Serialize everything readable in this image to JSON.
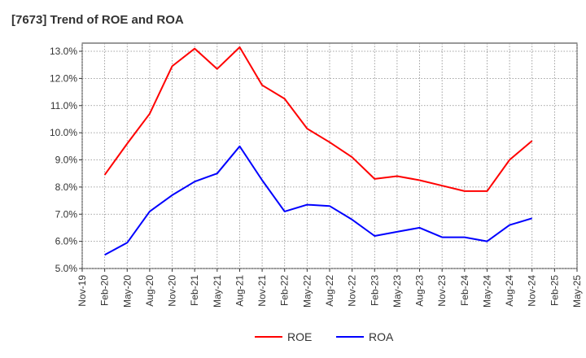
{
  "chart_data": {
    "type": "line",
    "title": "[7673]  Trend of ROE and ROA",
    "x_labels": [
      "Nov-19",
      "Feb-20",
      "May-20",
      "Aug-20",
      "Nov-20",
      "Feb-21",
      "May-21",
      "Aug-21",
      "Nov-21",
      "Feb-22",
      "May-22",
      "Aug-22",
      "Nov-22",
      "Feb-23",
      "May-23",
      "Aug-23",
      "Nov-23",
      "Feb-24",
      "May-24",
      "Aug-24",
      "Nov-24",
      "Feb-25",
      "May-25"
    ],
    "y_ticks": [
      "5.0%",
      "6.0%",
      "7.0%",
      "8.0%",
      "9.0%",
      "10.0%",
      "11.0%",
      "12.0%",
      "13.0%"
    ],
    "ylim": [
      5.0,
      13.3
    ],
    "grid": true,
    "legend_position": "bottom",
    "series": [
      {
        "name": "ROE",
        "color": "#ff0000",
        "x": [
          "Feb-20",
          "May-20",
          "Aug-20",
          "Nov-20",
          "Feb-21",
          "May-21",
          "Aug-21",
          "Nov-21",
          "Feb-22",
          "May-22",
          "Aug-22",
          "Nov-22",
          "Feb-23",
          "May-23",
          "Aug-23",
          "Nov-23",
          "Feb-24",
          "May-24",
          "Aug-24",
          "Nov-24"
        ],
        "values": [
          8.45,
          9.6,
          10.7,
          12.45,
          13.1,
          12.35,
          13.15,
          11.75,
          11.25,
          10.15,
          9.65,
          9.1,
          8.3,
          8.4,
          8.25,
          8.05,
          7.85,
          7.85,
          9.0,
          9.7
        ]
      },
      {
        "name": "ROA",
        "color": "#0000ff",
        "x": [
          "Feb-20",
          "May-20",
          "Aug-20",
          "Nov-20",
          "Feb-21",
          "May-21",
          "Aug-21",
          "Nov-21",
          "Feb-22",
          "May-22",
          "Aug-22",
          "Nov-22",
          "Feb-23",
          "May-23",
          "Aug-23",
          "Nov-23",
          "Feb-24",
          "May-24",
          "Aug-24",
          "Nov-24"
        ],
        "values": [
          5.5,
          5.95,
          7.1,
          7.7,
          8.2,
          8.5,
          9.5,
          8.25,
          7.1,
          7.35,
          7.3,
          6.8,
          6.2,
          6.35,
          6.5,
          6.15,
          6.15,
          6.0,
          6.6,
          6.85
        ]
      }
    ]
  }
}
